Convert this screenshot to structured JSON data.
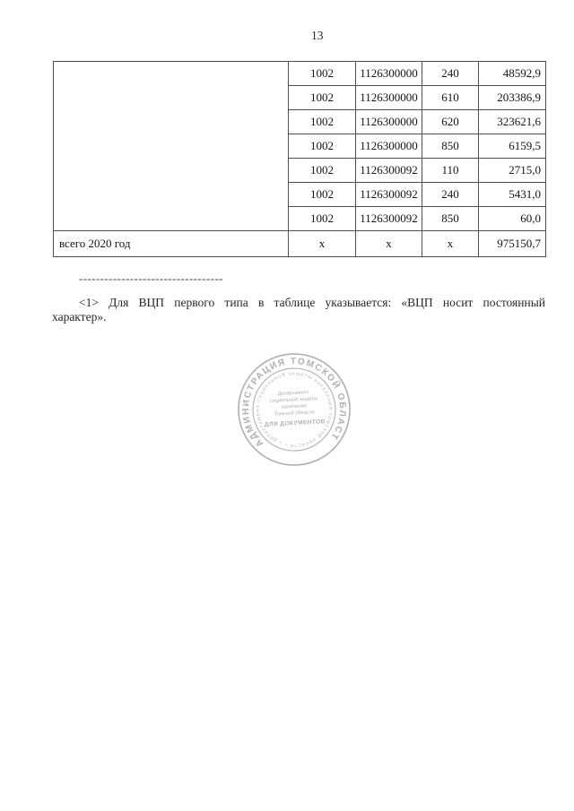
{
  "page": {
    "number": "13",
    "background": "#ffffff",
    "text_color": "#1e1e1e",
    "table_border_color": "#4f4f4f"
  },
  "table": {
    "rows": [
      {
        "section": "1002",
        "target_article": "1126300000",
        "expense_type": "240",
        "amount": "48592,9"
      },
      {
        "section": "1002",
        "target_article": "1126300000",
        "expense_type": "610",
        "amount": "203386,9"
      },
      {
        "section": "1002",
        "target_article": "1126300000",
        "expense_type": "620",
        "amount": "323621,6"
      },
      {
        "section": "1002",
        "target_article": "1126300000",
        "expense_type": "850",
        "amount": "6159,5"
      },
      {
        "section": "1002",
        "target_article": "1126300092",
        "expense_type": "110",
        "amount": "2715,0"
      },
      {
        "section": "1002",
        "target_article": "1126300092",
        "expense_type": "240",
        "amount": "5431,0"
      },
      {
        "section": "1002",
        "target_article": "1126300092",
        "expense_type": "850",
        "amount": "60,0"
      }
    ],
    "total": {
      "label": "всего 2020 год",
      "section": "x",
      "target_article": "x",
      "expense_type": "x",
      "amount": "975150,7"
    }
  },
  "footnote": {
    "separator": "----------------------------------",
    "line1": "<1> Для ВЦП первого типа в таблице указывается: «ВЦП носит постоянный",
    "line2": "характер»."
  },
  "stamp": {
    "color": "#a9a9a9",
    "outer_ring": "АДМИНИСТРАЦИЯ ТОМСКОЙ ОБЛАСТИ",
    "inner_ring": "• ДЕПАРТАМЕНТ СОЦИАЛЬНОЙ ЗАЩИТЫ НАСЕЛЕНИЯ ТОМСКОЙ ОБЛАСТИ •",
    "center_lines": [
      "Департамент",
      "социальной защиты",
      "населения",
      "Томской области",
      "ДЛЯ ДОКУМЕНТОВ"
    ]
  }
}
